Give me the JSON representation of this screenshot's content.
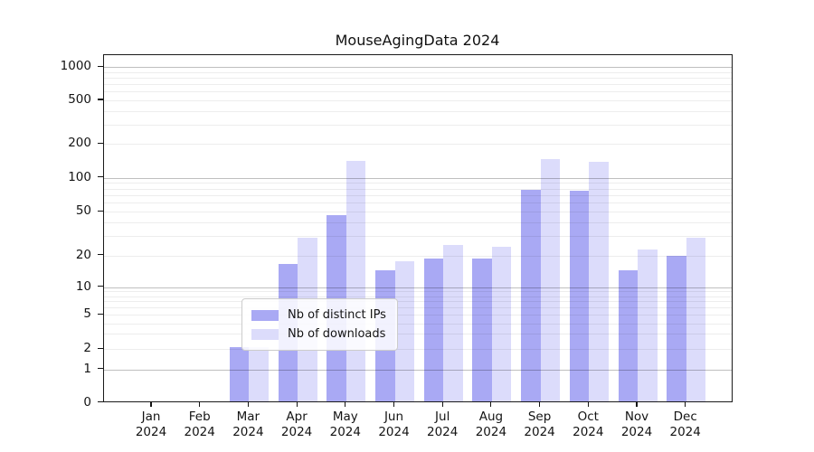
{
  "title": "MouseAgingData 2024",
  "colors": {
    "distinct_ips": "#a9a9f4",
    "downloads": "#dcdcfb",
    "major_grid": "#c0c0c0",
    "minor_grid": "#ededed"
  },
  "chart_data": {
    "type": "bar",
    "title": "MouseAgingData 2024",
    "xlabel": "",
    "ylabel": "",
    "yscale": "symlog",
    "ylim": [
      0,
      1200
    ],
    "grid": "on",
    "legend_position": "lower center",
    "y_ticks": [
      0,
      1,
      2,
      5,
      10,
      20,
      50,
      100,
      200,
      500,
      1000
    ],
    "categories": [
      {
        "month": "Jan",
        "year": "2024"
      },
      {
        "month": "Feb",
        "year": "2024"
      },
      {
        "month": "Mar",
        "year": "2024"
      },
      {
        "month": "Apr",
        "year": "2024"
      },
      {
        "month": "May",
        "year": "2024"
      },
      {
        "month": "Jun",
        "year": "2024"
      },
      {
        "month": "Jul",
        "year": "2024"
      },
      {
        "month": "Aug",
        "year": "2024"
      },
      {
        "month": "Sep",
        "year": "2024"
      },
      {
        "month": "Oct",
        "year": "2024"
      },
      {
        "month": "Nov",
        "year": "2024"
      },
      {
        "month": "Dec",
        "year": "2024"
      }
    ],
    "series": [
      {
        "name": "Nb of distinct IPs",
        "color_key": "distinct_ips",
        "values": [
          0,
          0,
          2,
          16,
          45,
          14,
          18,
          18,
          76,
          74,
          14,
          19
        ]
      },
      {
        "name": "Nb of downloads",
        "color_key": "downloads",
        "values": [
          0,
          0,
          2,
          28,
          136,
          17,
          24,
          23,
          142,
          134,
          22,
          28
        ]
      }
    ]
  }
}
